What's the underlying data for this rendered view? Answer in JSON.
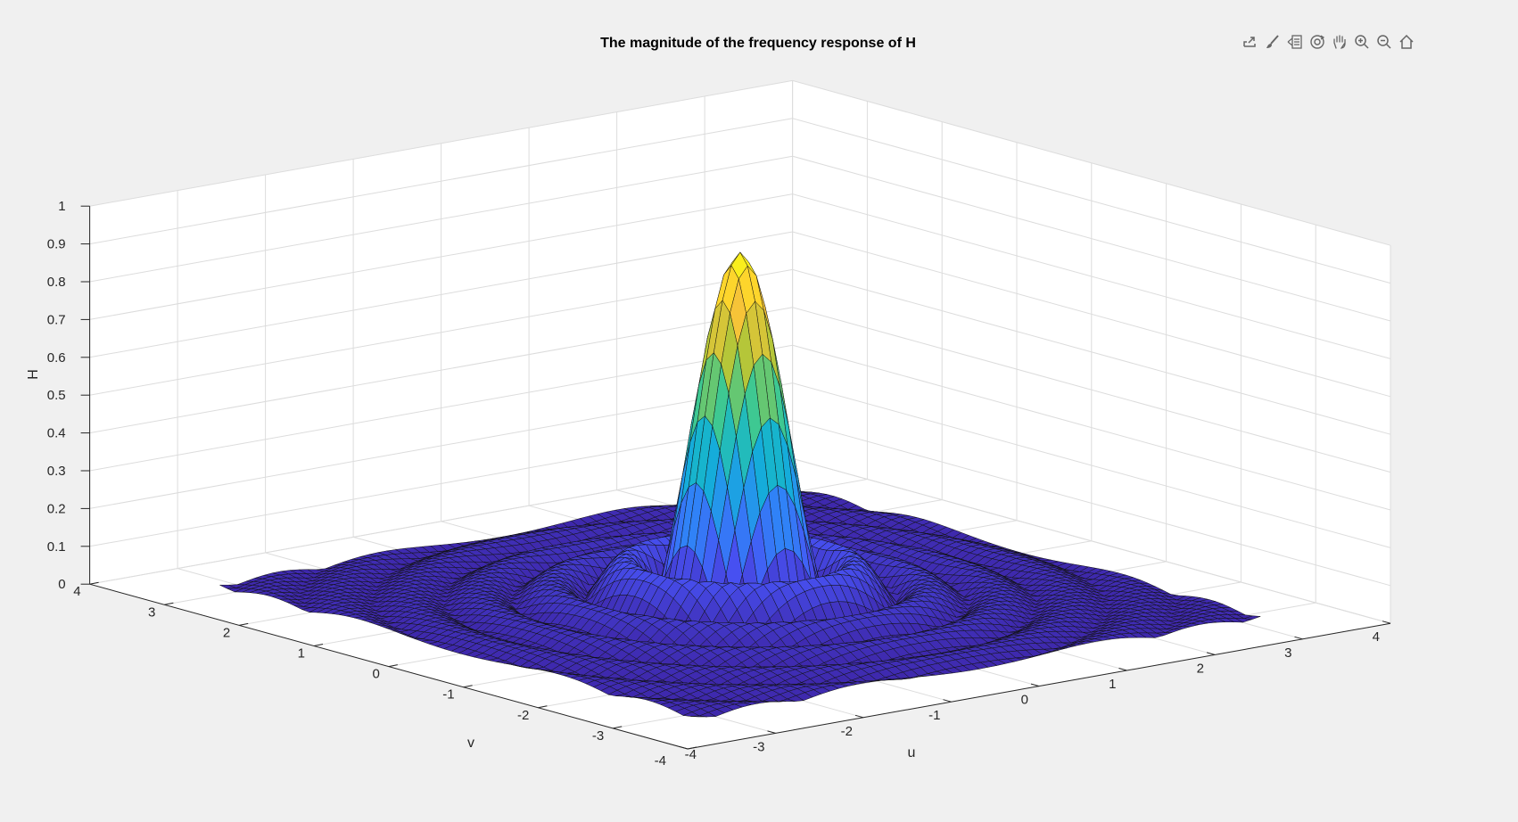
{
  "toolbar": {
    "buttons": [
      {
        "name": "export-icon"
      },
      {
        "name": "brush-icon"
      },
      {
        "name": "datatip-icon"
      },
      {
        "name": "rotate-3d-icon"
      },
      {
        "name": "pan-icon"
      },
      {
        "name": "zoom-in-icon"
      },
      {
        "name": "zoom-out-icon"
      },
      {
        "name": "home-icon"
      }
    ]
  },
  "chart_data": {
    "type": "surface",
    "title": "The magnitude of the frequency response of H",
    "xlabel": "u",
    "ylabel": "v",
    "zlabel": "H",
    "function": "|sinc(sqrt(u^2+v^2))| style 2-D frequency response; peak at origin",
    "xlim": [
      -4,
      4
    ],
    "ylim": [
      -4,
      4
    ],
    "zlim": [
      0,
      1
    ],
    "x_ticks": [
      -4,
      -3,
      -2,
      -1,
      0,
      1,
      2,
      3,
      4
    ],
    "y_ticks": [
      -4,
      -3,
      -2,
      -1,
      0,
      1,
      2,
      3,
      4
    ],
    "z_ticks": [
      0,
      0.1,
      0.2,
      0.3,
      0.4,
      0.5,
      0.6,
      0.7,
      0.8,
      0.9,
      1
    ],
    "x_tick_labels": [
      "-4",
      "-3",
      "-2",
      "-1",
      "0",
      "1",
      "2",
      "3",
      "4"
    ],
    "y_tick_labels": [
      "-4",
      "-3",
      "-2",
      "-1",
      "0",
      "1",
      "2",
      "3",
      "4"
    ],
    "z_tick_labels": [
      "0",
      "0.1",
      "0.2",
      "0.3",
      "0.4",
      "0.5",
      "0.6",
      "0.7",
      "0.8",
      "0.9",
      "1"
    ],
    "data_range": [
      -3.2,
      3.2
    ],
    "peak_value": 0.93,
    "colormap": "parula",
    "grid": true
  }
}
